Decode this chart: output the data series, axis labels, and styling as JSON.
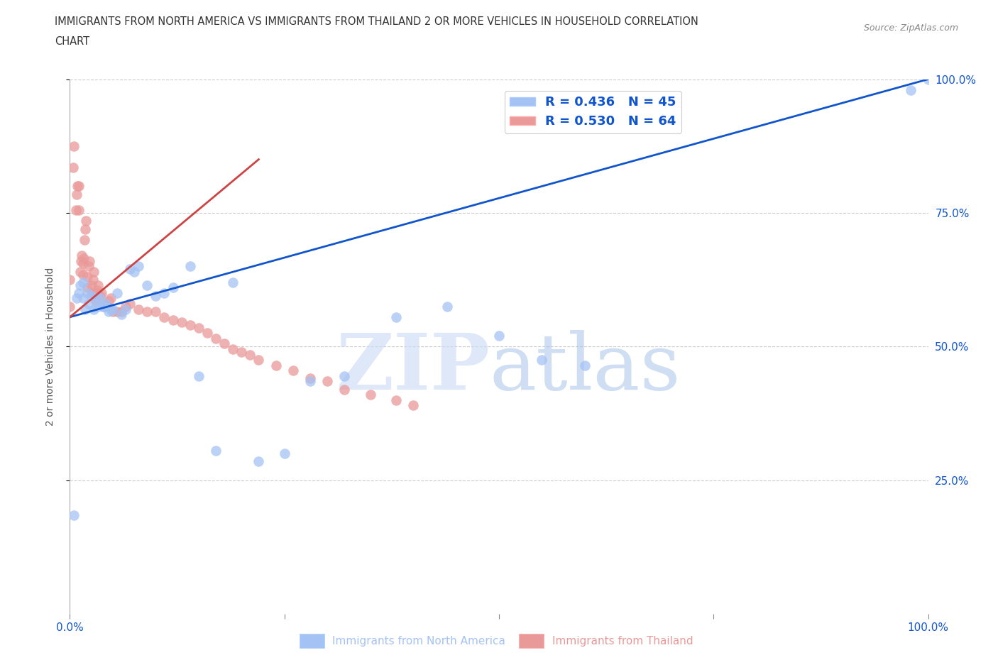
{
  "title_line1": "IMMIGRANTS FROM NORTH AMERICA VS IMMIGRANTS FROM THAILAND 2 OR MORE VEHICLES IN HOUSEHOLD CORRELATION",
  "title_line2": "CHART",
  "source": "Source: ZipAtlas.com",
  "ylabel": "2 or more Vehicles in Household",
  "xlim": [
    0,
    1
  ],
  "ylim": [
    0,
    1
  ],
  "north_america_R": 0.436,
  "north_america_N": 45,
  "thailand_R": 0.53,
  "thailand_N": 64,
  "north_america_color": "#a4c2f4",
  "thailand_color": "#ea9999",
  "north_america_line_color": "#1155cc",
  "thailand_line_color": "#cc4444",
  "legend_text_color": "#1155cc",
  "tick_color": "#1155cc",
  "background_color": "#ffffff",
  "na_line_x0": 0.0,
  "na_line_y0": 0.555,
  "na_line_x1": 1.0,
  "na_line_y1": 1.0,
  "th_line_x0": 0.0,
  "th_line_y0": 0.555,
  "th_line_x1": 0.22,
  "th_line_y1": 0.85,
  "north_america_x": [
    0.005,
    0.008,
    0.01,
    0.012,
    0.015,
    0.015,
    0.018,
    0.02,
    0.022,
    0.025,
    0.028,
    0.03,
    0.032,
    0.035,
    0.038,
    0.04,
    0.042,
    0.045,
    0.048,
    0.05,
    0.055,
    0.06,
    0.065,
    0.07,
    0.075,
    0.08,
    0.09,
    0.1,
    0.11,
    0.12,
    0.14,
    0.15,
    0.17,
    0.19,
    0.22,
    0.25,
    0.28,
    0.32,
    0.38,
    0.44,
    0.5,
    0.55,
    0.6,
    0.98,
    1.0
  ],
  "north_america_y": [
    0.185,
    0.59,
    0.6,
    0.615,
    0.59,
    0.62,
    0.57,
    0.6,
    0.58,
    0.595,
    0.57,
    0.59,
    0.575,
    0.59,
    0.575,
    0.575,
    0.58,
    0.565,
    0.57,
    0.57,
    0.6,
    0.56,
    0.57,
    0.645,
    0.64,
    0.65,
    0.615,
    0.595,
    0.6,
    0.61,
    0.65,
    0.445,
    0.305,
    0.62,
    0.285,
    0.3,
    0.435,
    0.445,
    0.555,
    0.575,
    0.52,
    0.475,
    0.465,
    0.98,
    1.0
  ],
  "thailand_x": [
    0.0,
    0.0,
    0.004,
    0.005,
    0.007,
    0.008,
    0.009,
    0.01,
    0.01,
    0.012,
    0.013,
    0.014,
    0.015,
    0.015,
    0.016,
    0.017,
    0.018,
    0.019,
    0.02,
    0.02,
    0.022,
    0.023,
    0.025,
    0.025,
    0.027,
    0.028,
    0.03,
    0.03,
    0.032,
    0.033,
    0.035,
    0.037,
    0.04,
    0.042,
    0.045,
    0.048,
    0.05,
    0.055,
    0.06,
    0.065,
    0.07,
    0.08,
    0.09,
    0.1,
    0.11,
    0.12,
    0.13,
    0.14,
    0.15,
    0.16,
    0.17,
    0.18,
    0.19,
    0.2,
    0.21,
    0.22,
    0.24,
    0.26,
    0.28,
    0.3,
    0.32,
    0.35,
    0.38,
    0.4
  ],
  "thailand_y": [
    0.575,
    0.625,
    0.835,
    0.875,
    0.755,
    0.785,
    0.8,
    0.755,
    0.8,
    0.64,
    0.66,
    0.67,
    0.635,
    0.655,
    0.665,
    0.7,
    0.72,
    0.735,
    0.61,
    0.63,
    0.65,
    0.66,
    0.6,
    0.615,
    0.625,
    0.64,
    0.585,
    0.6,
    0.605,
    0.615,
    0.595,
    0.6,
    0.575,
    0.58,
    0.585,
    0.59,
    0.565,
    0.565,
    0.565,
    0.575,
    0.58,
    0.57,
    0.565,
    0.565,
    0.555,
    0.55,
    0.545,
    0.54,
    0.535,
    0.525,
    0.515,
    0.505,
    0.495,
    0.49,
    0.485,
    0.475,
    0.465,
    0.455,
    0.44,
    0.435,
    0.42,
    0.41,
    0.4,
    0.39
  ]
}
